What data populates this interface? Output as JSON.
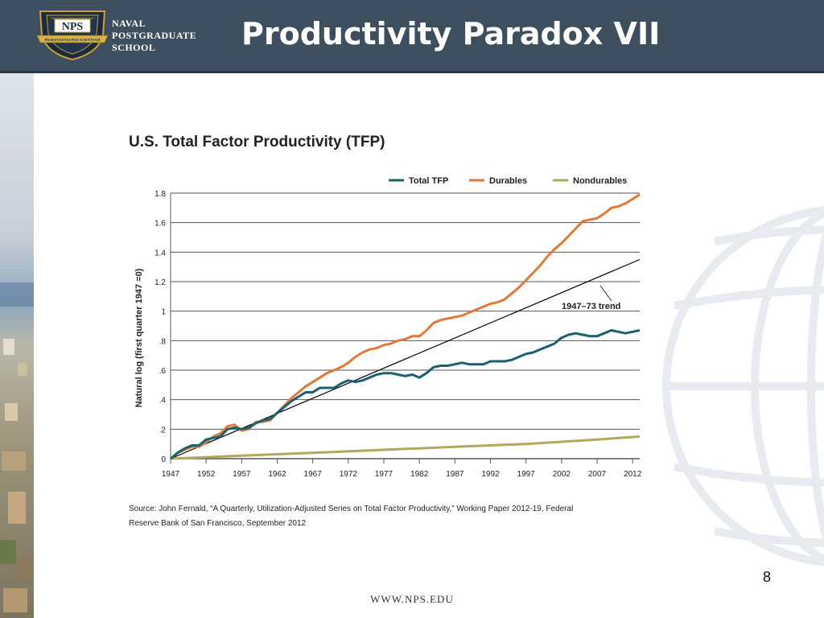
{
  "header": {
    "logo_text": "NPS",
    "logo_banner_text": "PRAESTANTIA PER SCIENTIAM",
    "school_name": [
      "NAVAL",
      "POSTGRADUATE",
      "SCHOOL"
    ],
    "slide_title": "Productivity Paradox VII"
  },
  "footer": {
    "page_number": "8",
    "url": "WWW.NPS.EDU"
  },
  "colors": {
    "header": "#3d4f5e",
    "total_tfp": "#1c5f6e",
    "durables": "#e07a3a",
    "nondurables": "#b0a85a",
    "trend": "#000000",
    "grid": "#555555"
  },
  "chart_data": {
    "type": "line",
    "title": "U.S. Total Factor Productivity (TFP)",
    "ylabel": "Natural log (first quarter 1947 =0)",
    "xlabel": "",
    "xlim": [
      1947,
      2013
    ],
    "ylim": [
      0,
      1.8
    ],
    "x_ticks": [
      1947,
      1952,
      1957,
      1962,
      1967,
      1972,
      1977,
      1982,
      1987,
      1992,
      1997,
      2002,
      2007,
      2012
    ],
    "x_tick_labels": [
      "1947",
      "1952",
      "1957",
      "1962",
      "1967",
      "1972",
      "1977",
      "1982",
      "1987",
      "1992",
      "1997",
      "2002",
      "2007",
      "2012"
    ],
    "y_ticks": [
      0,
      0.2,
      0.4,
      0.6,
      0.8,
      1.0,
      1.2,
      1.4,
      1.6,
      1.8
    ],
    "y_tick_labels": [
      "0",
      ".2",
      ".4",
      ".6",
      ".8",
      "1",
      "1.2",
      "1.4",
      "1.6",
      "1.8"
    ],
    "grid": true,
    "legend_position": "top-right",
    "series": [
      {
        "name": "Total TFP",
        "color": "#1c5f6e",
        "points": [
          [
            1947,
            0
          ],
          [
            1948,
            0.04
          ],
          [
            1949,
            0.07
          ],
          [
            1950,
            0.09
          ],
          [
            1951,
            0.09
          ],
          [
            1952,
            0.13
          ],
          [
            1953,
            0.14
          ],
          [
            1954,
            0.15
          ],
          [
            1955,
            0.2
          ],
          [
            1956,
            0.21
          ],
          [
            1957,
            0.2
          ],
          [
            1958,
            0.21
          ],
          [
            1959,
            0.24
          ],
          [
            1960,
            0.26
          ],
          [
            1961,
            0.27
          ],
          [
            1962,
            0.31
          ],
          [
            1963,
            0.35
          ],
          [
            1964,
            0.39
          ],
          [
            1965,
            0.42
          ],
          [
            1966,
            0.45
          ],
          [
            1967,
            0.45
          ],
          [
            1968,
            0.48
          ],
          [
            1969,
            0.48
          ],
          [
            1970,
            0.48
          ],
          [
            1971,
            0.51
          ],
          [
            1972,
            0.53
          ],
          [
            1973,
            0.52
          ],
          [
            1974,
            0.53
          ],
          [
            1975,
            0.55
          ],
          [
            1976,
            0.57
          ],
          [
            1977,
            0.58
          ],
          [
            1978,
            0.58
          ],
          [
            1979,
            0.57
          ],
          [
            1980,
            0.56
          ],
          [
            1981,
            0.57
          ],
          [
            1982,
            0.55
          ],
          [
            1983,
            0.58
          ],
          [
            1984,
            0.62
          ],
          [
            1985,
            0.63
          ],
          [
            1986,
            0.63
          ],
          [
            1987,
            0.64
          ],
          [
            1988,
            0.65
          ],
          [
            1989,
            0.64
          ],
          [
            1990,
            0.64
          ],
          [
            1991,
            0.64
          ],
          [
            1992,
            0.66
          ],
          [
            1993,
            0.66
          ],
          [
            1994,
            0.66
          ],
          [
            1995,
            0.67
          ],
          [
            1996,
            0.69
          ],
          [
            1997,
            0.71
          ],
          [
            1998,
            0.72
          ],
          [
            1999,
            0.74
          ],
          [
            2000,
            0.76
          ],
          [
            2001,
            0.78
          ],
          [
            2002,
            0.82
          ],
          [
            2003,
            0.84
          ],
          [
            2004,
            0.85
          ],
          [
            2005,
            0.84
          ],
          [
            2006,
            0.83
          ],
          [
            2007,
            0.83
          ],
          [
            2008,
            0.85
          ],
          [
            2009,
            0.87
          ],
          [
            2010,
            0.86
          ],
          [
            2011,
            0.85
          ],
          [
            2012,
            0.86
          ],
          [
            2013,
            0.87
          ]
        ]
      },
      {
        "name": "Durables",
        "color": "#e07a3a",
        "points": [
          [
            1947,
            0
          ],
          [
            1948,
            0.04
          ],
          [
            1949,
            0.06
          ],
          [
            1950,
            0.08
          ],
          [
            1951,
            0.08
          ],
          [
            1952,
            0.11
          ],
          [
            1953,
            0.15
          ],
          [
            1954,
            0.17
          ],
          [
            1955,
            0.22
          ],
          [
            1956,
            0.23
          ],
          [
            1957,
            0.19
          ],
          [
            1958,
            0.2
          ],
          [
            1959,
            0.25
          ],
          [
            1960,
            0.25
          ],
          [
            1961,
            0.26
          ],
          [
            1962,
            0.31
          ],
          [
            1963,
            0.36
          ],
          [
            1964,
            0.41
          ],
          [
            1965,
            0.45
          ],
          [
            1966,
            0.49
          ],
          [
            1967,
            0.52
          ],
          [
            1968,
            0.55
          ],
          [
            1969,
            0.58
          ],
          [
            1970,
            0.6
          ],
          [
            1971,
            0.62
          ],
          [
            1972,
            0.65
          ],
          [
            1973,
            0.69
          ],
          [
            1974,
            0.72
          ],
          [
            1975,
            0.74
          ],
          [
            1976,
            0.75
          ],
          [
            1977,
            0.77
          ],
          [
            1978,
            0.78
          ],
          [
            1979,
            0.8
          ],
          [
            1980,
            0.81
          ],
          [
            1981,
            0.83
          ],
          [
            1982,
            0.83
          ],
          [
            1983,
            0.87
          ],
          [
            1984,
            0.92
          ],
          [
            1985,
            0.94
          ],
          [
            1986,
            0.95
          ],
          [
            1987,
            0.96
          ],
          [
            1988,
            0.97
          ],
          [
            1989,
            0.99
          ],
          [
            1990,
            1.01
          ],
          [
            1991,
            1.03
          ],
          [
            1992,
            1.05
          ],
          [
            1993,
            1.06
          ],
          [
            1994,
            1.08
          ],
          [
            1995,
            1.12
          ],
          [
            1996,
            1.16
          ],
          [
            1997,
            1.21
          ],
          [
            1998,
            1.26
          ],
          [
            1999,
            1.31
          ],
          [
            2000,
            1.37
          ],
          [
            2001,
            1.42
          ],
          [
            2002,
            1.46
          ],
          [
            2003,
            1.51
          ],
          [
            2004,
            1.56
          ],
          [
            2005,
            1.61
          ],
          [
            2006,
            1.62
          ],
          [
            2007,
            1.63
          ],
          [
            2008,
            1.66
          ],
          [
            2009,
            1.7
          ],
          [
            2010,
            1.71
          ],
          [
            2011,
            1.73
          ],
          [
            2012,
            1.76
          ],
          [
            2013,
            1.79
          ]
        ]
      },
      {
        "name": "Nondurables",
        "color": "#b0a85a",
        "points": [
          [
            1947,
            0
          ],
          [
            1957,
            0.02
          ],
          [
            1967,
            0.04
          ],
          [
            1977,
            0.06
          ],
          [
            1987,
            0.08
          ],
          [
            1997,
            0.1
          ],
          [
            2007,
            0.13
          ],
          [
            2013,
            0.15
          ]
        ]
      }
    ],
    "trend": {
      "label": "1947–73 trend",
      "points": [
        [
          1947,
          0
        ],
        [
          2013,
          1.35
        ]
      ]
    },
    "source": "Source: John Fernald, “A Quarterly, Utilization-Adjusted Series on Total Factor Productivity,” Working Paper 2012-19, Federal Reserve Bank of San Francisco, September 2012",
    "source_lines": [
      "Source: John Fernald, “A Quarterly, Utilization-Adjusted Series on Total Factor Productivity,” Working Paper 2012-19, Federal",
      "Reserve Bank of San Francisco, September 2012"
    ]
  }
}
